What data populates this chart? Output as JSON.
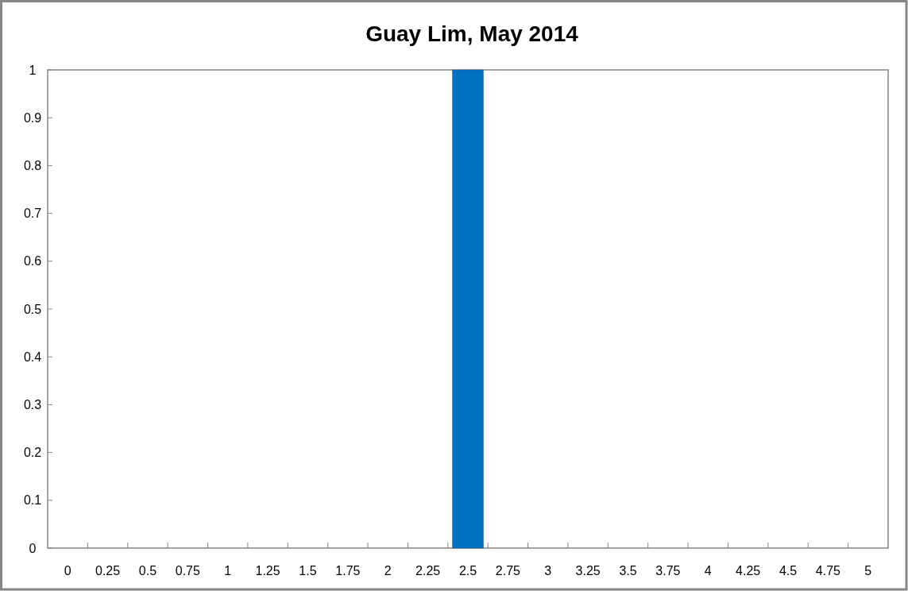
{
  "chart_data": {
    "type": "bar",
    "title": "Guay Lim, May 2014",
    "categories": [
      "0",
      "0.25",
      "0.5",
      "0.75",
      "1",
      "1.25",
      "1.5",
      "1.75",
      "2",
      "2.25",
      "2.5",
      "2.75",
      "3",
      "3.25",
      "3.5",
      "3.75",
      "4",
      "4.25",
      "4.5",
      "4.75",
      "5"
    ],
    "values": [
      0,
      0,
      0,
      0,
      0,
      0,
      0,
      0,
      0,
      0,
      1,
      0,
      0,
      0,
      0,
      0,
      0,
      0,
      0,
      0,
      0
    ],
    "color": "#0070c0",
    "ylim": [
      0,
      1
    ],
    "yticks": [
      0,
      0.1,
      0.2,
      0.3,
      0.4,
      0.5,
      0.6,
      0.7,
      0.8,
      0.9,
      1
    ]
  }
}
